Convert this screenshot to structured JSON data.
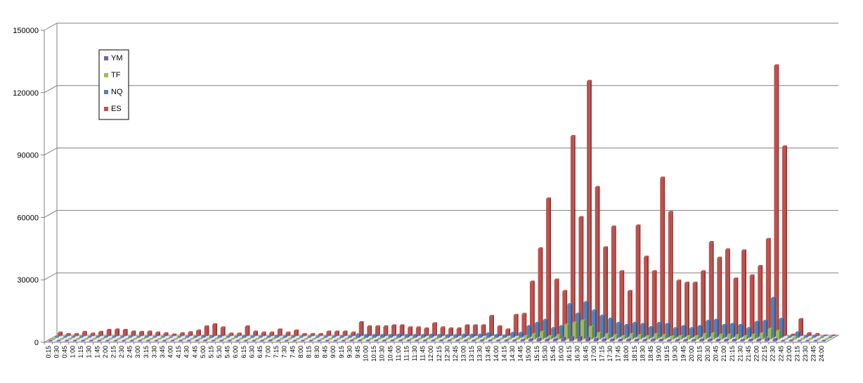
{
  "chart_data": {
    "type": "bar",
    "title": "",
    "xlabel": "",
    "ylabel": "",
    "ylim": [
      0,
      150000
    ],
    "yticks": [
      "0",
      "30000",
      "60000",
      "90000",
      "120000",
      "150000"
    ],
    "categories": [
      "0:15",
      "0:30",
      "0:45",
      "1:00",
      "1:15",
      "1:30",
      "1:45",
      "2:00",
      "2:15",
      "2:30",
      "2:45",
      "3:00",
      "3:15",
      "3:30",
      "3:45",
      "4:00",
      "4:15",
      "4:30",
      "4:45",
      "5:00",
      "5:15",
      "5:30",
      "5:45",
      "6:00",
      "6:15",
      "6:30",
      "6:45",
      "7:00",
      "7:15",
      "7:30",
      "7:45",
      "8:00",
      "8:15",
      "8:30",
      "8:45",
      "9:00",
      "9:15",
      "9:30",
      "9:45",
      "10:00",
      "10:15",
      "10:30",
      "10:45",
      "11:00",
      "11:15",
      "11:30",
      "11:45",
      "12:00",
      "12:15",
      "12:30",
      "12:45",
      "13:00",
      "13:15",
      "13:30",
      "13:45",
      "14:00",
      "14:15",
      "14:30",
      "14:45",
      "15:00",
      "15:15",
      "15:30",
      "15:45",
      "16:00",
      "16:15",
      "16:30",
      "16:45",
      "17:00",
      "17:15",
      "17:30",
      "17:45",
      "18:00",
      "18:15",
      "18:30",
      "18:45",
      "19:00",
      "19:15",
      "19:30",
      "19:45",
      "20:00",
      "20:15",
      "20:30",
      "20:45",
      "21:00",
      "21:15",
      "21:30",
      "21:45",
      "22:00",
      "22:15",
      "22:30",
      "22:45",
      "23:00",
      "23:15",
      "23:30",
      "23:45",
      "24:00"
    ],
    "legend_placement": "top-left",
    "grid": true,
    "series": [
      {
        "name": "YM",
        "color": "#7b5ea7",
        "values": [
          100,
          100,
          100,
          100,
          100,
          100,
          100,
          100,
          100,
          100,
          100,
          100,
          100,
          100,
          100,
          100,
          100,
          100,
          200,
          200,
          100,
          100,
          100,
          100,
          100,
          100,
          100,
          200,
          100,
          100,
          100,
          100,
          100,
          100,
          100,
          100,
          100,
          200,
          200,
          200,
          200,
          200,
          200,
          200,
          200,
          200,
          200,
          200,
          200,
          200,
          200,
          200,
          200,
          300,
          200,
          200,
          300,
          300,
          500,
          800,
          1000,
          700,
          800,
          1500,
          1800,
          2000,
          1500,
          1000,
          800,
          700,
          600,
          700,
          600,
          500,
          700,
          600,
          400,
          500,
          500,
          500,
          700,
          700,
          600,
          600,
          600,
          500,
          600,
          700,
          1200,
          900,
          100,
          300,
          100,
          100,
          100,
          100
        ]
      },
      {
        "name": "TF",
        "color": "#9bbb59",
        "values": [
          100,
          100,
          100,
          100,
          100,
          100,
          100,
          100,
          100,
          100,
          100,
          100,
          100,
          100,
          100,
          100,
          100,
          100,
          200,
          300,
          200,
          100,
          100,
          200,
          100,
          100,
          100,
          300,
          200,
          200,
          100,
          100,
          100,
          100,
          100,
          100,
          200,
          400,
          300,
          300,
          300,
          300,
          300,
          300,
          300,
          300,
          400,
          300,
          300,
          300,
          400,
          400,
          400,
          600,
          400,
          300,
          600,
          600,
          1500,
          2500,
          3500,
          1500,
          2000,
          7000,
          8000,
          9000,
          6000,
          3000,
          2500,
          2000,
          1500,
          2500,
          2000,
          1500,
          2500,
          2000,
          1200,
          1500,
          1500,
          1500,
          2500,
          2800,
          2200,
          2200,
          2000,
          1500,
          2200,
          2800,
          5000,
          4000,
          100,
          800,
          200,
          200,
          100,
          100
        ]
      },
      {
        "name": "NQ",
        "color": "#4f81bd",
        "values": [
          200,
          200,
          200,
          300,
          200,
          300,
          300,
          300,
          300,
          300,
          200,
          300,
          200,
          200,
          100,
          200,
          300,
          300,
          600,
          700,
          500,
          200,
          200,
          600,
          300,
          300,
          300,
          800,
          400,
          400,
          200,
          200,
          200,
          300,
          300,
          400,
          400,
          1500,
          1200,
          1200,
          1200,
          1200,
          1300,
          1200,
          1200,
          1200,
          1300,
          1200,
          1100,
          1100,
          1300,
          1300,
          1300,
          2000,
          1200,
          1000,
          2200,
          2200,
          5500,
          7000,
          8500,
          4500,
          5500,
          16000,
          11500,
          17000,
          13000,
          10500,
          9000,
          7000,
          6000,
          7000,
          6500,
          5000,
          7000,
          6500,
          4500,
          5500,
          4500,
          5500,
          8000,
          8500,
          6000,
          6500,
          6000,
          4500,
          7500,
          8000,
          19000,
          9000,
          300,
          2500,
          500,
          500,
          100,
          100
        ]
      },
      {
        "name": "ES",
        "color": "#c0504d",
        "values": [
          1500,
          800,
          800,
          1800,
          1000,
          1800,
          2800,
          3000,
          2800,
          2000,
          1800,
          2000,
          1500,
          1200,
          600,
          1200,
          1700,
          2500,
          4500,
          5500,
          4000,
          1000,
          1000,
          4500,
          2000,
          1500,
          1500,
          3000,
          1500,
          2500,
          800,
          800,
          800,
          2000,
          2000,
          2000,
          1500,
          6500,
          4500,
          4500,
          4500,
          5000,
          5000,
          4000,
          4000,
          3500,
          6000,
          4000,
          3500,
          3500,
          5000,
          5000,
          5000,
          9500,
          4500,
          3000,
          10000,
          10500,
          26000,
          42000,
          66000,
          27000,
          21500,
          96000,
          57000,
          122500,
          71500,
          42500,
          52500,
          31000,
          21500,
          53000,
          38000,
          31000,
          76000,
          59500,
          26500,
          25500,
          25500,
          31000,
          45000,
          37500,
          41500,
          27500,
          41000,
          29000,
          33500,
          46500,
          130000,
          91000,
          500,
          8000,
          1200,
          800,
          100,
          100
        ]
      }
    ]
  }
}
